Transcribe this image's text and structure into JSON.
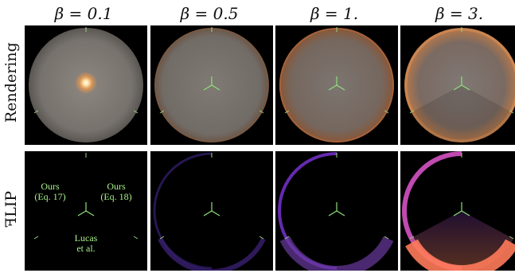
{
  "figure": {
    "columns": [
      {
        "label": "β = 0.1"
      },
      {
        "label": "β = 0.5"
      },
      {
        "label": "β = 1."
      },
      {
        "label": "β = 3."
      }
    ],
    "rows": [
      {
        "label": "Rendering"
      },
      {
        "label": "ꟻLIP"
      }
    ],
    "annotations": {
      "ours_eq17_line1": "Ours",
      "ours_eq17_line2": "(Eq. 17)",
      "ours_eq18_line1": "Ours",
      "ours_eq18_line2": "(Eq. 18)",
      "lucas_line1": "Lucas",
      "lucas_line2": "et al."
    },
    "colors": {
      "panel_background": "#000000",
      "annotation_green": "#a8f08a",
      "sphere_gray": "#7a7672",
      "rim_orange": "#c8784a",
      "flip_purple": "#7b3fd0",
      "flip_orange": "#ff8a5a"
    }
  }
}
